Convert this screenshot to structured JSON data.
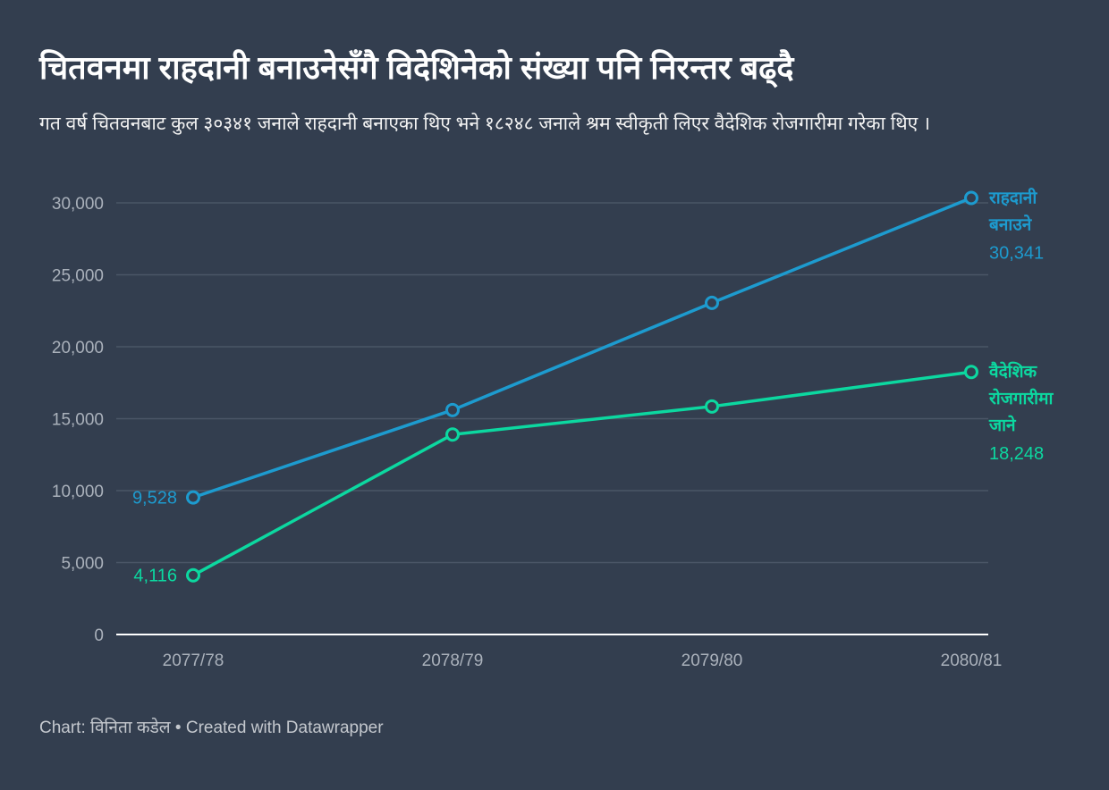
{
  "title": "चितवनमा राहदानी बनाउनेसँगै विदेशिनेको संख्या पनि निरन्तर बढ्दै",
  "subtitle": "गत वर्ष चितवनबाट कुल  ३०३४१ जनाले राहदानी  बनाएका थिए भने १८२४८ जनाले श्रम स्वीकृती लिएर वैदेशिक रोजगारीमा गरेका  थिए ।",
  "footer": "Chart: विनिता कडेल • Created with Datawrapper",
  "chart_data": {
    "type": "line",
    "categories": [
      "2077/78",
      "2078/79",
      "2079/80",
      "2080/81"
    ],
    "ylim": [
      0,
      30000
    ],
    "yticks": [
      0,
      5000,
      10000,
      15000,
      20000,
      25000,
      30000
    ],
    "ytick_labels": [
      "0",
      "5,000",
      "10,000",
      "15,000",
      "20,000",
      "25,000",
      "30,000"
    ],
    "grid": true,
    "series": [
      {
        "name": "राहदानी बनाउने",
        "name_lines": [
          "राहदानी",
          "बनाउने"
        ],
        "color": "#1d9bcf",
        "values": [
          9528,
          15600,
          23050,
          30341
        ],
        "start_label": "9,528",
        "end_label": "30,341"
      },
      {
        "name": "वैदेशिक रोजगारीमा जाने",
        "name_lines": [
          "वैदेशिक",
          "रोजगारीमा",
          "जाने"
        ],
        "color": "#0cd8a0",
        "values": [
          4116,
          13900,
          15850,
          18248
        ],
        "start_label": "4,116",
        "end_label": "18,248"
      }
    ]
  }
}
